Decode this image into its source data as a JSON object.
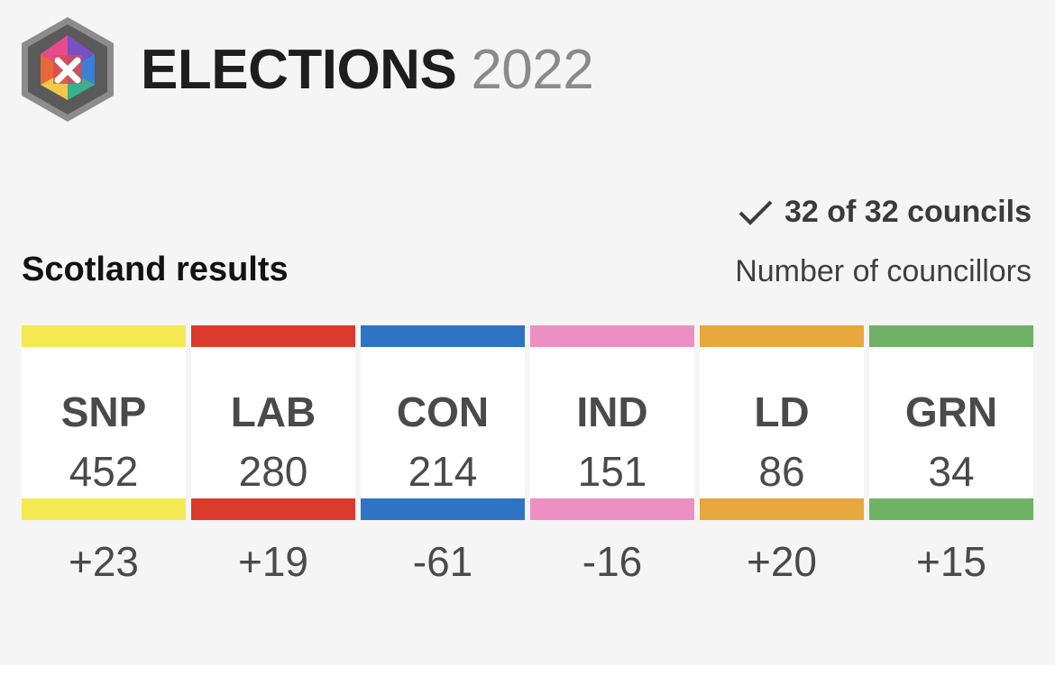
{
  "header": {
    "logo_icon": "ballot-x-hexagon-icon",
    "title": "ELECTIONS",
    "year": "2022"
  },
  "status": {
    "icon": "checkmark-icon",
    "text": "32 of 32 councils"
  },
  "section": {
    "title": "Scotland results",
    "unit": "Number of councillors"
  },
  "colors": {
    "SNP": "#f5e952",
    "LAB": "#dc3a2a",
    "CON": "#2f73c4",
    "IND": "#ee8fc3",
    "LD": "#e6a73c",
    "GRN": "#6fb266"
  },
  "parties": [
    {
      "name": "SNP",
      "seats": "452",
      "change": "+23"
    },
    {
      "name": "LAB",
      "seats": "280",
      "change": "+19"
    },
    {
      "name": "CON",
      "seats": "214",
      "change": "-61"
    },
    {
      "name": "IND",
      "seats": "151",
      "change": "-16"
    },
    {
      "name": "LD",
      "seats": "86",
      "change": "+20"
    },
    {
      "name": "GRN",
      "seats": "34",
      "change": "+15"
    }
  ]
}
